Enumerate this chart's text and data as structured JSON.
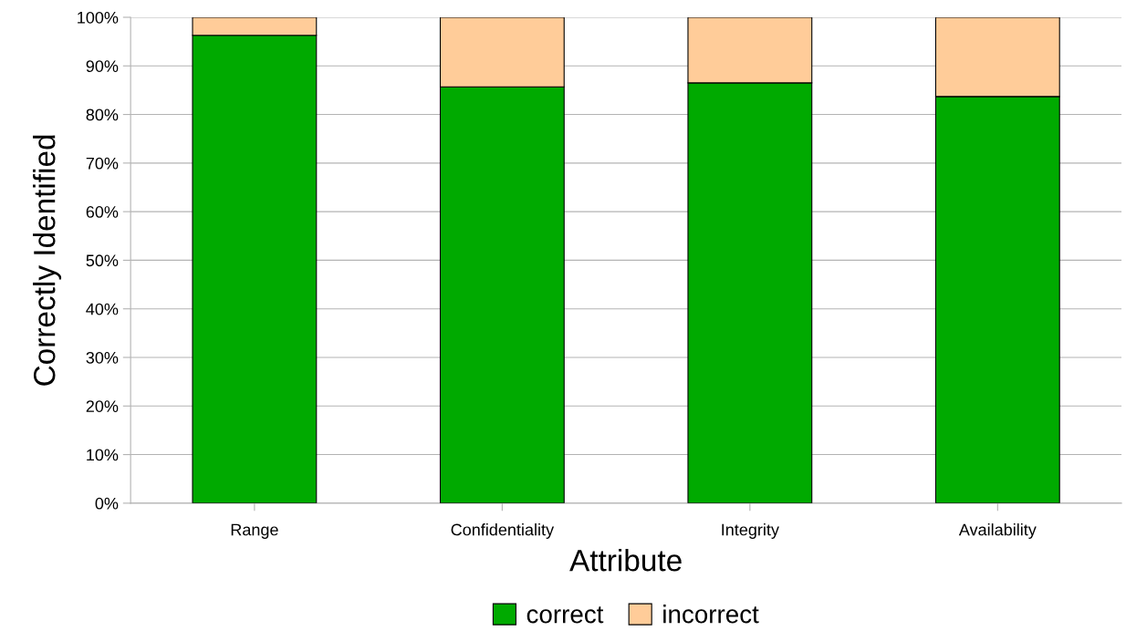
{
  "chart_data": {
    "type": "bar",
    "stacked": true,
    "xlabel": "Attribute",
    "ylabel": "Correctly Identified",
    "categories": [
      "Range",
      "Confidentiality",
      "Integrity",
      "Availability"
    ],
    "series": [
      {
        "name": "correct",
        "color": "#00aa00",
        "values": [
          96.3,
          85.7,
          86.5,
          83.7
        ]
      },
      {
        "name": "incorrect",
        "color": "#ffcc99",
        "values": [
          3.7,
          14.3,
          13.5,
          16.3
        ]
      }
    ],
    "ylim": [
      0,
      100
    ],
    "yticks": [
      {
        "value": 0,
        "label": "0%"
      },
      {
        "value": 10,
        "label": "10%"
      },
      {
        "value": 20,
        "label": "20%"
      },
      {
        "value": 30,
        "label": "30%"
      },
      {
        "value": 40,
        "label": "40%"
      },
      {
        "value": 50,
        "label": "50%"
      },
      {
        "value": 60,
        "label": "60%"
      },
      {
        "value": 70,
        "label": "70%"
      },
      {
        "value": 80,
        "label": "80%"
      },
      {
        "value": 90,
        "label": "90%"
      },
      {
        "value": 100,
        "label": "100%"
      }
    ],
    "grid": "y",
    "legend": "bottom"
  }
}
